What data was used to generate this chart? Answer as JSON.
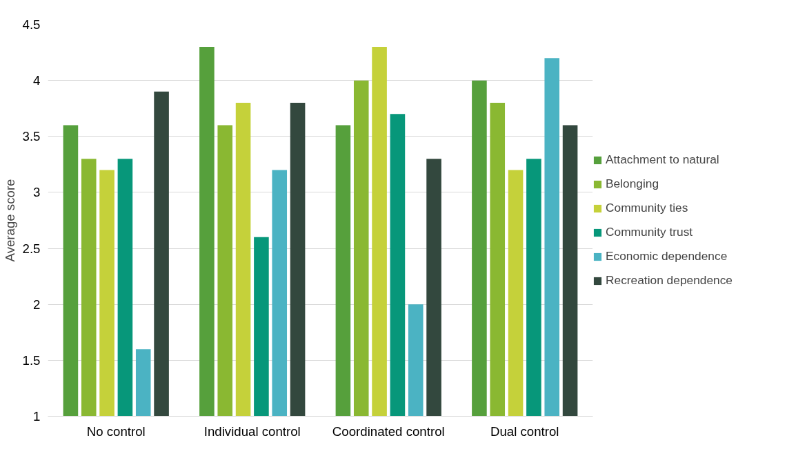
{
  "chart_data": {
    "type": "bar",
    "ylabel": "Average score",
    "categories": [
      "No control",
      "Individual control",
      "Coordinated control",
      "Dual control"
    ],
    "series": [
      {
        "name": "Attachment to natural",
        "color": "#56a03c",
        "values": [
          3.6,
          4.3,
          3.6,
          4.0
        ]
      },
      {
        "name": "Belonging",
        "color": "#8ab832",
        "values": [
          3.3,
          3.6,
          4.0,
          3.8
        ]
      },
      {
        "name": "Community ties",
        "color": "#c5d13a",
        "values": [
          3.2,
          3.8,
          4.3,
          3.2
        ]
      },
      {
        "name": "Community trust",
        "color": "#07977a",
        "values": [
          3.3,
          2.6,
          3.7,
          3.3
        ]
      },
      {
        "name": "Economic dependence",
        "color": "#4bb3c3",
        "values": [
          1.6,
          3.2,
          2.0,
          4.2
        ]
      },
      {
        "name": "Recreation dependence",
        "color": "#33483e",
        "values": [
          3.9,
          3.8,
          3.3,
          3.6
        ]
      }
    ],
    "ylim": [
      1,
      4.5
    ],
    "yticks": [
      1,
      {
        "value": 1.5,
        "label": "1.5"
      },
      2,
      {
        "value": 2.5,
        "label": "2.5"
      },
      3,
      {
        "value": 3.5,
        "label": "3.5"
      },
      4,
      {
        "value": 4.5,
        "label": "4.5"
      }
    ],
    "grid": "y",
    "legend": "right"
  }
}
